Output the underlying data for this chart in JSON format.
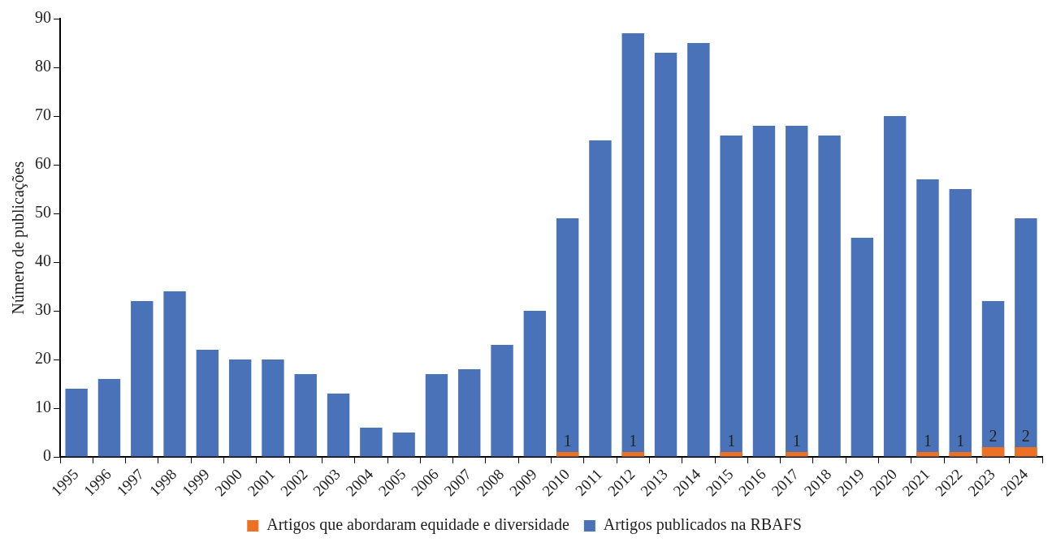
{
  "chart_data": {
    "type": "bar",
    "ylabel": "Número de publicações",
    "categories": [
      "1995",
      "1996",
      "1997",
      "1998",
      "1999",
      "2000",
      "2001",
      "2002",
      "2003",
      "2004",
      "2005",
      "2006",
      "2007",
      "2008",
      "2009",
      "2010",
      "2011",
      "2012",
      "2013",
      "2014",
      "2015",
      "2016",
      "2017",
      "2018",
      "2019",
      "2020",
      "2021",
      "2022",
      "2023",
      "2024"
    ],
    "series": [
      {
        "name": "Artigos publicados na RBAFS",
        "color": "#4a72b8",
        "values": [
          14,
          16,
          32,
          34,
          22,
          20,
          20,
          17,
          13,
          6,
          5,
          17,
          18,
          23,
          30,
          49,
          65,
          87,
          83,
          85,
          66,
          68,
          68,
          66,
          45,
          70,
          57,
          55,
          32,
          49
        ]
      },
      {
        "name": "Artigos que abordaram equidade e diversidade",
        "color": "#ed7125",
        "values": [
          0,
          0,
          0,
          0,
          0,
          0,
          0,
          0,
          0,
          0,
          0,
          0,
          0,
          0,
          0,
          1,
          0,
          1,
          0,
          0,
          1,
          0,
          1,
          0,
          0,
          0,
          1,
          1,
          2,
          2
        ],
        "value_labels": [
          null,
          null,
          null,
          null,
          null,
          null,
          null,
          null,
          null,
          null,
          null,
          null,
          null,
          null,
          null,
          "1",
          null,
          "1",
          null,
          null,
          "1",
          null,
          "1",
          null,
          null,
          null,
          "1",
          "1",
          "2",
          "2"
        ]
      }
    ],
    "ylim": [
      0,
      90
    ],
    "yticks": [
      0,
      10,
      20,
      30,
      40,
      50,
      60,
      70,
      80,
      90
    ],
    "grid": false,
    "legend": "bottom"
  }
}
